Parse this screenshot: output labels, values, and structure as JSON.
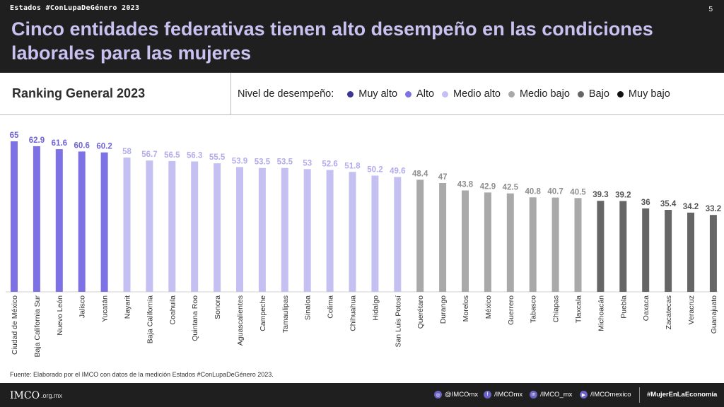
{
  "header": {
    "kicker": "Estados #ConLupaDeGénero 2023",
    "page_number": "5",
    "title": "Cinco entidades federativas tienen alto desempeño en las condiciones laborales para las mujeres"
  },
  "subtitle": "Ranking General 2023",
  "legend": {
    "title": "Nivel de desempeño:",
    "items": [
      {
        "label": "Muy alto",
        "color": "#3b3694"
      },
      {
        "label": "Alto",
        "color": "#7c72e6"
      },
      {
        "label": "Medio alto",
        "color": "#c5c0f2"
      },
      {
        "label": "Medio bajo",
        "color": "#a9a9a9"
      },
      {
        "label": "Bajo",
        "color": "#666666"
      },
      {
        "label": "Muy bajo",
        "color": "#111111"
      }
    ]
  },
  "chart_data": {
    "type": "bar",
    "categories": [
      "Ciudad de México",
      "Baja California Sur",
      "Nuevo León",
      "Jalisco",
      "Yucatán",
      "Nayarit",
      "Baja California",
      "Coahuila",
      "Quintana Roo",
      "Sonora",
      "Aguascalientes",
      "Campeche",
      "Tamaulipas",
      "Sinaloa",
      "Colima",
      "Chihuahua",
      "Hidalgo",
      "San Luis Potosí",
      "Querétaro",
      "Durango",
      "Morelos",
      "México",
      "Guerrero",
      "Tabasco",
      "Chiapas",
      "Tlaxcala",
      "Michoacán",
      "Puebla",
      "Oaxaca",
      "Zacatecas",
      "Veracruz",
      "Guanajuato"
    ],
    "values": [
      65,
      62.9,
      61.6,
      60.6,
      60.2,
      58,
      56.7,
      56.5,
      56.3,
      55.5,
      53.9,
      53.5,
      53.5,
      53,
      52.6,
      51.8,
      50.2,
      49.6,
      48.4,
      47,
      43.8,
      42.9,
      42.5,
      40.8,
      40.7,
      40.5,
      39.3,
      39.2,
      36,
      35.4,
      34.2,
      33.2
    ],
    "value_labels": [
      "65",
      "62.9",
      "61.6",
      "60.6",
      "60.2",
      "58",
      "56.7",
      "56.5",
      "56.3",
      "55.5",
      "53.9",
      "53.5",
      "53.5",
      "53",
      "52.6",
      "51.8",
      "50.2",
      "49.6",
      "48.4",
      "47",
      "43.8",
      "42.9",
      "42.5",
      "40.8",
      "40.7",
      "40.5",
      "39.3",
      "39.2",
      "36",
      "35.4",
      "34.2",
      "33.2"
    ],
    "levels": [
      "Alto",
      "Alto",
      "Alto",
      "Alto",
      "Alto",
      "Medio alto",
      "Medio alto",
      "Medio alto",
      "Medio alto",
      "Medio alto",
      "Medio alto",
      "Medio alto",
      "Medio alto",
      "Medio alto",
      "Medio alto",
      "Medio alto",
      "Medio alto",
      "Medio alto",
      "Medio bajo",
      "Medio bajo",
      "Medio bajo",
      "Medio bajo",
      "Medio bajo",
      "Medio bajo",
      "Medio bajo",
      "Medio bajo",
      "Bajo",
      "Bajo",
      "Bajo",
      "Bajo",
      "Bajo",
      "Bajo"
    ],
    "level_colors": {
      "Alto": "#7c72e6",
      "Medio alto": "#c5c0f2",
      "Medio bajo": "#a9a9a9",
      "Bajo": "#666666"
    },
    "label_colors": {
      "Alto": "#6e64d8",
      "Medio alto": "#b3acec",
      "Medio bajo": "#8e8e8e",
      "Bajo": "#555555"
    },
    "ylim": [
      0,
      65
    ],
    "grid": false,
    "title": "Ranking General 2023"
  },
  "source": "Fuente: Elaborado por el IMCO  con datos de la medición Estados #ConLupaDeGénero 2023.",
  "footer": {
    "logo": "IMCO",
    "domain": ".org.mx",
    "social": [
      {
        "icon": "instagram-icon",
        "glyph": "◎",
        "label": "@IMCOmx"
      },
      {
        "icon": "facebook-icon",
        "glyph": "f",
        "label": "/IMCOmx"
      },
      {
        "icon": "linkedin-icon",
        "glyph": "in",
        "label": "/IMCO_mx"
      },
      {
        "icon": "youtube-icon",
        "glyph": "▶",
        "label": "/IMCOmexico"
      }
    ],
    "hashtag": "#MujerEnLaEconomía"
  }
}
